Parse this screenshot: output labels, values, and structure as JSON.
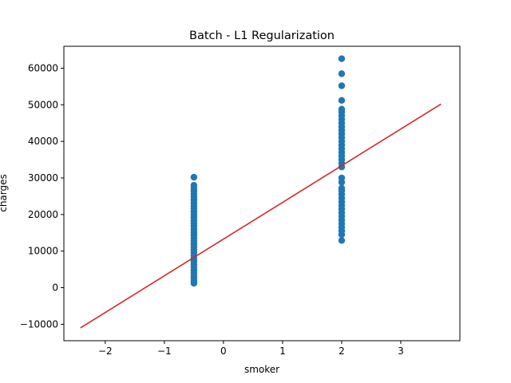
{
  "chart_data": {
    "type": "scatter",
    "title": "Batch - L1 Regularization",
    "xlabel": "smoker",
    "ylabel": "charges",
    "xlim": [
      -2.7,
      4.0
    ],
    "ylim": [
      -14500,
      66000
    ],
    "xticks": [
      -2,
      -1,
      0,
      1,
      2,
      3
    ],
    "yticks": [
      -10000,
      0,
      10000,
      20000,
      30000,
      40000,
      50000,
      60000
    ],
    "grid": false,
    "legend": "none",
    "colors": {
      "points": "#1f77b4",
      "line": "#d62728"
    },
    "series": [
      {
        "kind": "scatter",
        "x_value": -0.5,
        "y": [
          1200,
          1800,
          2500,
          3200,
          4000,
          4800,
          5600,
          6400,
          7200,
          8000,
          8800,
          9600,
          10400,
          11200,
          12000,
          12800,
          13600,
          14400,
          15200,
          16000,
          16800,
          17600,
          18400,
          19200,
          20000,
          20800,
          21600,
          22400,
          23200,
          24000,
          24800,
          25600,
          26400,
          27200,
          28000,
          30200
        ]
      },
      {
        "kind": "scatter",
        "x_value": 2.0,
        "y": [
          12900,
          14500,
          15500,
          16500,
          17500,
          18500,
          19500,
          20500,
          21500,
          22500,
          23500,
          24500,
          25500,
          26500,
          27200,
          28800,
          30000,
          33000,
          34000,
          35000,
          36000,
          37000,
          38000,
          39000,
          40000,
          41000,
          42000,
          43000,
          44000,
          45000,
          46000,
          47000,
          48000,
          48800,
          51200,
          55200,
          58500,
          62600
        ]
      },
      {
        "kind": "line",
        "x": [
          -2.42,
          3.68
        ],
        "y": [
          -11000,
          50200
        ]
      }
    ]
  }
}
